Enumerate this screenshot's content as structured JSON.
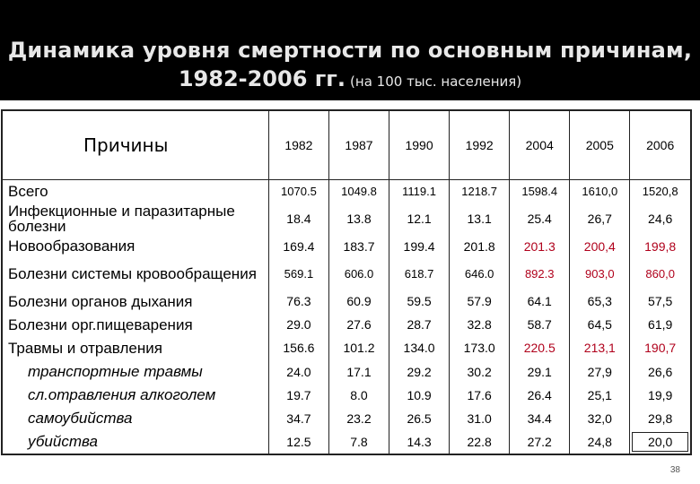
{
  "title": {
    "line1": "Динамика уровня смертности по основным причинам,",
    "line2_main": "1982-2006 гг.",
    "line2_sub": "(на 100 тыс. населения)"
  },
  "table": {
    "label_header": "Причины",
    "years": [
      "1982",
      "1987",
      "1990",
      "1992",
      "2004",
      "2005",
      "2006"
    ],
    "rows": [
      {
        "label": "Всего",
        "sub": false,
        "values": [
          "1070.5",
          "1049.8",
          "1119.1",
          "1218.7",
          "1598.4",
          "1610,0",
          "1520,8"
        ]
      },
      {
        "label": "Инфекционные и паразитарные болезни",
        "sub": false,
        "values": [
          "18.4",
          "13.8",
          "12.1",
          "13.1",
          "25.4",
          "26,7",
          "24,6"
        ]
      },
      {
        "label": "Новообразования",
        "sub": false,
        "values": [
          "169.4",
          "183.7",
          "199.4",
          "201.8",
          "201.3",
          "200,4",
          "199,8"
        ]
      },
      {
        "label": "Болезни системы кровообращения",
        "sub": false,
        "values": [
          "569.1",
          "606.0",
          "618.7",
          "646.0",
          "892.3",
          "903,0",
          "860,0"
        ]
      },
      {
        "label": "Болезни органов дыхания",
        "sub": false,
        "values": [
          "76.3",
          "60.9",
          "59.5",
          "57.9",
          "64.1",
          "65,3",
          "57,5"
        ]
      },
      {
        "label": "Болезни орг.пищеварения",
        "sub": false,
        "values": [
          "29.0",
          "27.6",
          "28.7",
          "32.8",
          "58.7",
          "64,5",
          "61,9"
        ]
      },
      {
        "label": "Травмы и отравления",
        "sub": false,
        "values": [
          "156.6",
          "101.2",
          "134.0",
          "173.0",
          "220.5",
          "213,1",
          "190,7"
        ]
      },
      {
        "label": "транспортные травмы",
        "sub": true,
        "values": [
          "24.0",
          "17.1",
          "29.2",
          "30.2",
          "29.1",
          "27,9",
          "26,6"
        ]
      },
      {
        "label": "сл.отравления алкоголем",
        "sub": true,
        "values": [
          "19.7",
          "8.0",
          "10.9",
          "17.6",
          "26.4",
          "25,1",
          "19,9"
        ]
      },
      {
        "label": "самоубийства",
        "sub": true,
        "values": [
          "34.7",
          "23.2",
          "26.5",
          "31.0",
          "34.4",
          "32,0",
          "29,8"
        ]
      },
      {
        "label": "убийства",
        "sub": true,
        "values": [
          "12.5",
          "7.8",
          "14.3",
          "22.8",
          "27.2",
          "24,8",
          "20,0"
        ]
      }
    ],
    "highlight_color": "#b0001b"
  },
  "page_number": "38"
}
